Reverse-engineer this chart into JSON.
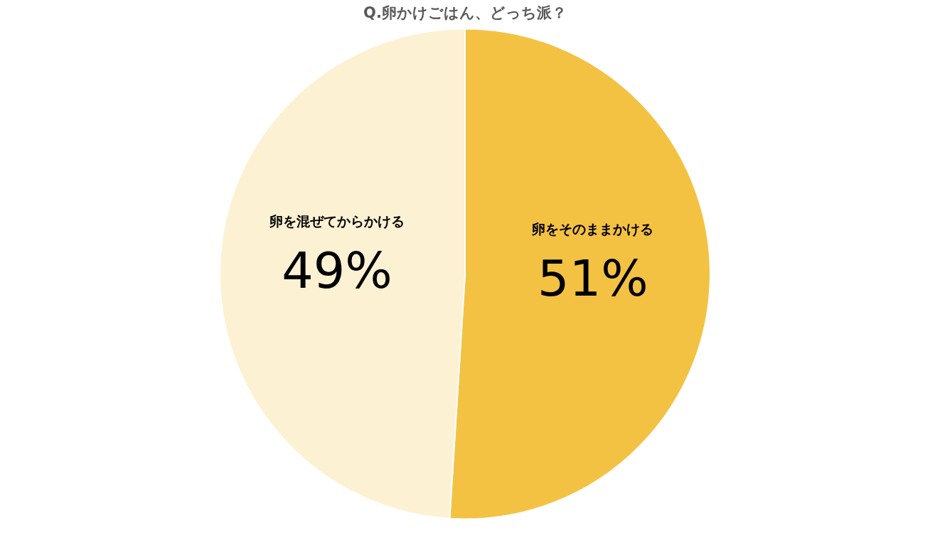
{
  "chart_data": {
    "type": "pie",
    "title": "Q.卵かけごはん、どっち派？",
    "categories": [
      "卵をそのままかける",
      "卵を混ぜてからかける"
    ],
    "values": [
      51,
      49
    ],
    "colors": [
      "#f4c243",
      "#fcf1d2"
    ],
    "value_labels": [
      "51%",
      "49%"
    ],
    "legend": false
  }
}
